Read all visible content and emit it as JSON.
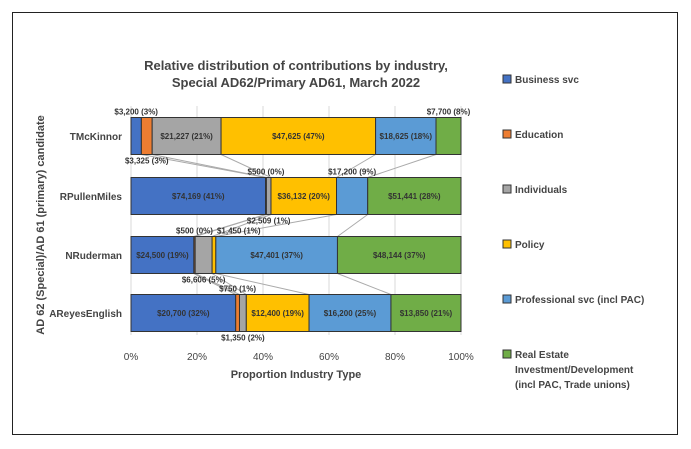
{
  "chart_data": {
    "type": "bar",
    "stacked": "percent",
    "orientation": "horizontal",
    "title": [
      "Relative distribution of contributions by industry,",
      "Special AD62/Primary AD61, March 2022"
    ],
    "xlabel": "Proportion Industry Type",
    "ylabel": "AD 62 (Special)/AD 61 (primary) candidate",
    "xlim": [
      0,
      100
    ],
    "xticks": [
      "0%",
      "20%",
      "40%",
      "60%",
      "80%",
      "100%"
    ],
    "grid": true,
    "legend_position": "right",
    "categories": [
      "TMcKinnor",
      "RPullenMiles",
      "NRuderman",
      "AReyesEnglish"
    ],
    "series": [
      {
        "name": "Business svc",
        "color": "#4472c4",
        "values": [
          3200,
          74169,
          24500,
          20700
        ],
        "labels": [
          "$3,200 (3%)",
          "$74,169 (41%)",
          "$24,500 (19%)",
          "$20,700 (32%)"
        ]
      },
      {
        "name": "Education",
        "color": "#ed7d31",
        "values": [
          3325,
          500,
          500,
          750
        ],
        "labels": [
          "$3,325 (3%)",
          "$500 (0%)",
          "$500 (0%)",
          "$750 (1%)"
        ]
      },
      {
        "name": "Individuals",
        "color": "#a5a5a5",
        "values": [
          21227,
          2509,
          6606,
          1350
        ],
        "labels": [
          "$21,227 (21%)",
          "$2,509 (1%)",
          "$6,606 (5%)",
          "$1,350 (2%)"
        ]
      },
      {
        "name": "Policy",
        "color": "#ffc000",
        "values": [
          47625,
          36132,
          1450,
          12400
        ],
        "labels": [
          "$47,625 (47%)",
          "$36,132 (20%)",
          "$1,450 (1%)",
          "$12,400 (19%)"
        ]
      },
      {
        "name": "Professional svc (incl PAC)",
        "color": "#5b9bd5",
        "values": [
          18625,
          17200,
          47401,
          16200
        ],
        "labels": [
          "$18,625 (18%)",
          "$17,200 (9%)",
          "$47,401 (37%)",
          "$16,200 (25%)"
        ]
      },
      {
        "name": "Real Estate Investment/Development (incl PAC, Trade unions)",
        "color": "#70ad47",
        "values": [
          7700,
          51441,
          48144,
          13850
        ],
        "labels": [
          "$7,700 (8%)",
          "$51,441 (28%)",
          "$48,144 (37%)",
          "$13,850 (21%)"
        ]
      }
    ]
  }
}
